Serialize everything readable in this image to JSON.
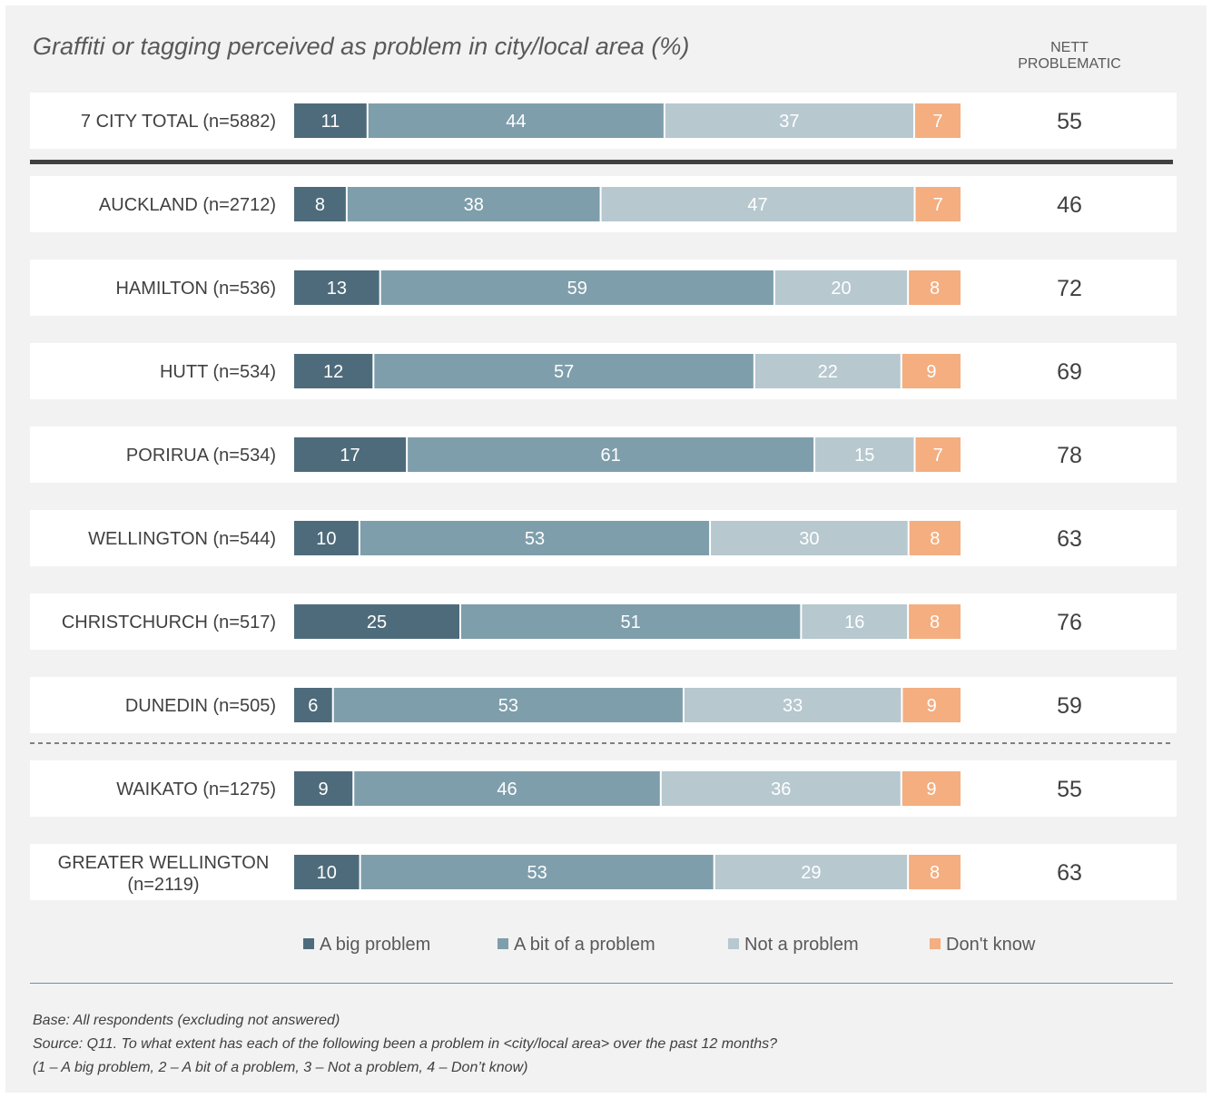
{
  "chart_data": {
    "type": "bar",
    "orientation": "horizontal",
    "stacked": true,
    "title": "Graffiti or tagging perceived as problem in city/local area (%)",
    "nett_header": "NETT PROBLEMATIC",
    "categories": [
      "7 CITY TOTAL (n=5882)",
      "AUCKLAND (n=2712)",
      "HAMILTON (n=536)",
      "HUTT (n=534)",
      "PORIRUA (n=534)",
      "WELLINGTON (n=544)",
      "CHRISTCHURCH (n=517)",
      "DUNEDIN (n=505)",
      "WAIKATO (n=1275)",
      "GREATER WELLINGTON (n=2119)"
    ],
    "series": [
      {
        "name": "A big problem",
        "color": "#4e6b7b",
        "values": [
          11,
          8,
          13,
          12,
          17,
          10,
          25,
          6,
          9,
          10
        ]
      },
      {
        "name": "A bit of a problem",
        "color": "#7f9eab",
        "values": [
          44,
          38,
          59,
          57,
          61,
          53,
          51,
          53,
          46,
          53
        ]
      },
      {
        "name": "Not a problem",
        "color": "#b7c8cf",
        "values": [
          37,
          47,
          20,
          22,
          15,
          30,
          16,
          33,
          36,
          29
        ]
      },
      {
        "name": "Don't know",
        "color": "#f4ae80",
        "values": [
          7,
          7,
          8,
          9,
          7,
          8,
          8,
          9,
          9,
          8
        ]
      }
    ],
    "nett_problematic": [
      55,
      46,
      72,
      69,
      78,
      63,
      76,
      59,
      55,
      63
    ],
    "label_colors": {
      "big": "#ffffff",
      "other": "#ffffff",
      "nett": "#404040"
    },
    "xlim": [
      0,
      100
    ],
    "grid": false,
    "legend_position": "bottom"
  },
  "footer": {
    "base": "Base: All respondents (excluding not answered)",
    "source": "Source: Q11. To what extent has each of the following been a problem in <city/local area> over the past 12 months?",
    "scale": "(1 – A big problem, 2 – A bit of a problem, 3 – Not a problem, 4 – Don’t know)"
  },
  "colors": {
    "panel_background": "#f2f2f2",
    "row_background": "#ffffff",
    "separator": "#404040",
    "footer_rule": "#6f8fa6"
  }
}
